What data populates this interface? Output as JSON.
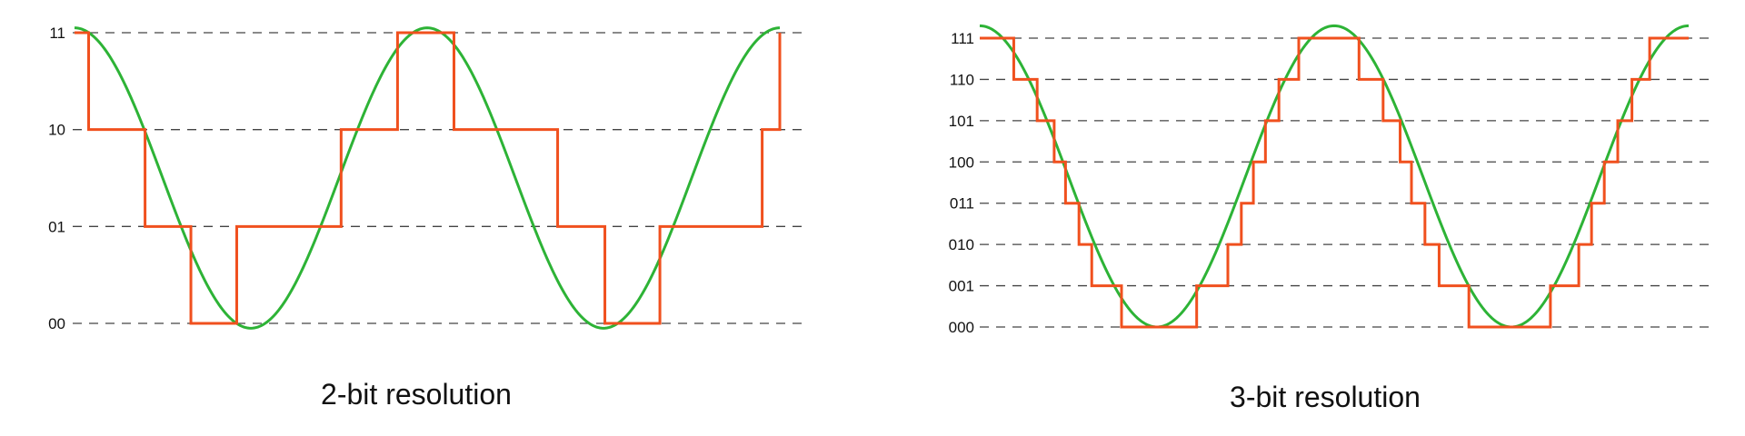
{
  "colors": {
    "signal": "#2db336",
    "quantized": "#f0501e",
    "grid": "#444444",
    "text": "#111111"
  },
  "chart_data": [
    {
      "type": "line",
      "caption": "2-bit resolution",
      "levels": [
        "00",
        "01",
        "10",
        "11"
      ],
      "grid": "dashed horizontal lines at each level",
      "x_range": [
        0,
        1
      ],
      "series": [
        {
          "role": "analog-signal",
          "color": "#2db336",
          "shape": "sine",
          "y_range": [
            -0.05,
            3.05
          ],
          "cycles": 2,
          "starts_at": "peak"
        },
        {
          "role": "quantized-signal",
          "color": "#f0501e",
          "x": [
            0,
            0.02,
            0.1,
            0.165,
            0.23,
            0.378,
            0.458,
            0.538,
            0.685,
            0.752,
            0.83,
            0.975,
            1.0
          ],
          "y": [
            3,
            2,
            1,
            0,
            1,
            2,
            3,
            2,
            1,
            0,
            1,
            2,
            3
          ]
        }
      ]
    },
    {
      "type": "line",
      "caption": "3-bit resolution",
      "levels": [
        "000",
        "001",
        "010",
        "011",
        "100",
        "101",
        "110",
        "111"
      ],
      "grid": "dashed horizontal lines at each level",
      "x_range": [
        0,
        1
      ],
      "series": [
        {
          "role": "analog-signal",
          "color": "#2db336",
          "shape": "sine",
          "y_range": [
            0,
            7.3
          ],
          "cycles": 2,
          "starts_at": "peak"
        },
        {
          "role": "quantized-signal",
          "color": "#f0501e",
          "x": [
            0,
            0.048,
            0.081,
            0.105,
            0.121,
            0.14,
            0.158,
            0.2,
            0.306,
            0.35,
            0.369,
            0.386,
            0.403,
            0.422,
            0.45,
            0.535,
            0.569,
            0.593,
            0.609,
            0.628,
            0.648,
            0.69,
            0.805,
            0.845,
            0.863,
            0.881,
            0.9,
            0.92,
            0.945,
            1.0
          ],
          "y": [
            7,
            6,
            5,
            4,
            3,
            2,
            1,
            0,
            1,
            2,
            3,
            4,
            5,
            6,
            7,
            6,
            5,
            4,
            3,
            2,
            1,
            0,
            1,
            2,
            3,
            4,
            5,
            6,
            7,
            7
          ]
        }
      ]
    }
  ]
}
